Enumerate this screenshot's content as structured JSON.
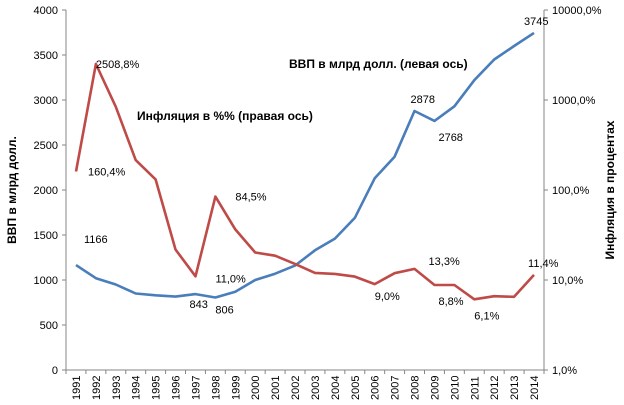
{
  "chart_data": {
    "type": "line",
    "x": [
      "1991",
      "1992",
      "1993",
      "1994",
      "1995",
      "1996",
      "1997",
      "1998",
      "1999",
      "2000",
      "2001",
      "2002",
      "2003",
      "2004",
      "2005",
      "2006",
      "2007",
      "2008",
      "2009",
      "2010",
      "2011",
      "2012",
      "2013",
      "2014"
    ],
    "left_axis": {
      "label": "ВВП в млрд долл.",
      "ticks": [
        "0",
        "500",
        "1000",
        "1500",
        "2000",
        "2500",
        "3000",
        "3500",
        "4000"
      ],
      "lim": [
        0,
        4000
      ]
    },
    "right_axis": {
      "label": "Инфляция в процентах",
      "scale": "log",
      "ticks": [
        "1,0%",
        "10,0%",
        "100,0%",
        "1000,0%",
        "10000,0%"
      ],
      "lim": [
        1,
        10000
      ]
    },
    "series": [
      {
        "name": "ВВП в млрд долл. (левая ось)",
        "axis": "left",
        "color": "#4a7ebb",
        "values": [
          1166,
          1020,
          950,
          850,
          830,
          815,
          843,
          806,
          870,
          1000,
          1070,
          1160,
          1330,
          1460,
          1690,
          2130,
          2370,
          2878,
          2768,
          2930,
          3220,
          3450,
          3600,
          3745
        ]
      },
      {
        "name": "Инфляция в %% (правая ось)",
        "axis": "right",
        "color": "#be4b48",
        "values": [
          160.4,
          2508.8,
          840,
          215,
          131,
          21.8,
          11.0,
          84.5,
          36.5,
          20.2,
          18.6,
          15.1,
          12.0,
          11.7,
          10.9,
          9.0,
          11.9,
          13.3,
          8.8,
          8.8,
          6.1,
          6.6,
          6.5,
          11.4
        ]
      }
    ],
    "data_labels": [
      {
        "series": 0,
        "index": 0,
        "text": "1166"
      },
      {
        "series": 0,
        "index": 7,
        "text": "806"
      },
      {
        "series": 0,
        "index": 6,
        "text": "843"
      },
      {
        "series": 0,
        "index": 17,
        "text": "2878"
      },
      {
        "series": 0,
        "index": 18,
        "text": "2768"
      },
      {
        "series": 0,
        "index": 23,
        "text": "3745"
      },
      {
        "series": 1,
        "index": 0,
        "text": "160,4%"
      },
      {
        "series": 1,
        "index": 1,
        "text": "2508,8%"
      },
      {
        "series": 1,
        "index": 6,
        "text": "11,0%"
      },
      {
        "series": 1,
        "index": 7,
        "text": "84,5%"
      },
      {
        "series": 1,
        "index": 15,
        "text": "9,0%"
      },
      {
        "series": 1,
        "index": 17,
        "text": "13,3%"
      },
      {
        "series": 1,
        "index": 18,
        "text": "8,8%"
      },
      {
        "series": 1,
        "index": 20,
        "text": "6,1%"
      },
      {
        "series": 1,
        "index": 23,
        "text": "11,4%"
      }
    ],
    "grid": false,
    "legend": "none"
  }
}
